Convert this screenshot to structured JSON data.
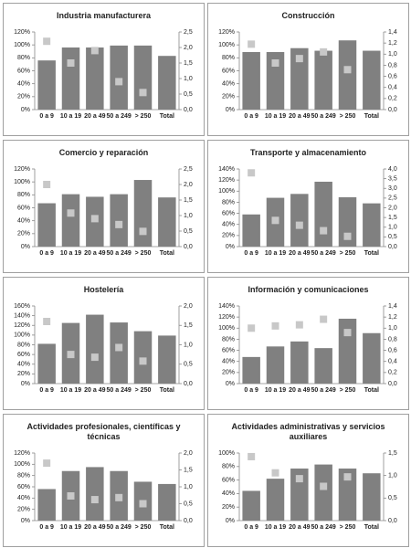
{
  "chart_data": [
    {
      "type": "bar",
      "title": "Industria manufacturera",
      "categories": [
        "0 a 9",
        "10 a 19",
        "20 a 49",
        "50 a 249",
        "> 250",
        "Total"
      ],
      "series": [
        {
          "type": "bar",
          "color": "#808080",
          "values": [
            76,
            96,
            96,
            99,
            99,
            83
          ]
        },
        {
          "type": "scatter",
          "axis": "y2",
          "color": "#c8c8c8",
          "values": [
            2.2,
            1.5,
            1.9,
            0.9,
            0.55,
            null
          ]
        }
      ],
      "ylim": [
        0,
        120
      ],
      "yticks": [
        {
          "value": 0,
          "label": "0%"
        },
        {
          "value": 20,
          "label": "20%"
        },
        {
          "value": 40,
          "label": "40%"
        },
        {
          "value": 60,
          "label": "60%"
        },
        {
          "value": 80,
          "label": "80%"
        },
        {
          "value": 100,
          "label": "100%"
        },
        {
          "value": 120,
          "label": "120%"
        }
      ],
      "y2lim": [
        0,
        2.5
      ],
      "y2ticks": [
        {
          "value": 0,
          "label": "0,0"
        },
        {
          "value": 0.5,
          "label": "0,5"
        },
        {
          "value": 1,
          "label": "1,0"
        },
        {
          "value": 1.5,
          "label": "1,5"
        },
        {
          "value": 2,
          "label": "2,0"
        },
        {
          "value": 2.5,
          "label": "2,5"
        }
      ]
    },
    {
      "type": "bar",
      "title": "Construcción",
      "categories": [
        "0 a 9",
        "10 a 19",
        "20 a 49",
        "50 a 249",
        "> 250",
        "Total"
      ],
      "series": [
        {
          "type": "bar",
          "color": "#808080",
          "values": [
            89,
            89,
            95,
            91,
            107,
            91
          ]
        },
        {
          "type": "scatter",
          "axis": "y2",
          "color": "#c8c8c8",
          "values": [
            1.18,
            0.84,
            0.92,
            1.04,
            0.72,
            null
          ]
        }
      ],
      "ylim": [
        0,
        120
      ],
      "yticks": [
        {
          "value": 0,
          "label": "0%"
        },
        {
          "value": 20,
          "label": "20%"
        },
        {
          "value": 40,
          "label": "40%"
        },
        {
          "value": 60,
          "label": "60%"
        },
        {
          "value": 80,
          "label": "80%"
        },
        {
          "value": 100,
          "label": "100%"
        },
        {
          "value": 120,
          "label": "120%"
        }
      ],
      "y2lim": [
        0,
        1.4
      ],
      "y2ticks": [
        {
          "value": 0,
          "label": "0,0"
        },
        {
          "value": 0.2,
          "label": "0,2"
        },
        {
          "value": 0.4,
          "label": "0,4"
        },
        {
          "value": 0.6,
          "label": "0,6"
        },
        {
          "value": 0.8,
          "label": "0,8"
        },
        {
          "value": 1,
          "label": "1,0"
        },
        {
          "value": 1.2,
          "label": "1,2"
        },
        {
          "value": 1.4,
          "label": "1,4"
        }
      ]
    },
    {
      "type": "bar",
      "title": "Comercio y reparación",
      "categories": [
        "0 a 9",
        "10 a 19",
        "20 a 49",
        "50 a 249",
        "> 250",
        "Total"
      ],
      "series": [
        {
          "type": "bar",
          "color": "#808080",
          "values": [
            67,
            81,
            77,
            81,
            103,
            76
          ]
        },
        {
          "type": "scatter",
          "axis": "y2",
          "color": "#c8c8c8",
          "values": [
            2.0,
            1.08,
            0.9,
            0.71,
            0.49,
            null
          ]
        }
      ],
      "ylim": [
        0,
        120
      ],
      "yticks": [
        {
          "value": 0,
          "label": "0%"
        },
        {
          "value": 20,
          "label": "20%"
        },
        {
          "value": 40,
          "label": "40%"
        },
        {
          "value": 60,
          "label": "60%"
        },
        {
          "value": 80,
          "label": "80%"
        },
        {
          "value": 100,
          "label": "100%"
        },
        {
          "value": 120,
          "label": "120%"
        }
      ],
      "y2lim": [
        0,
        2.5
      ],
      "y2ticks": [
        {
          "value": 0,
          "label": "0,0"
        },
        {
          "value": 0.5,
          "label": "0,5"
        },
        {
          "value": 1,
          "label": "1,0"
        },
        {
          "value": 1.5,
          "label": "1,5"
        },
        {
          "value": 2,
          "label": "2,0"
        },
        {
          "value": 2.5,
          "label": "2,5"
        }
      ]
    },
    {
      "type": "bar",
      "title": "Transporte y almacenamiento",
      "categories": [
        "0 a 9",
        "10 a 19",
        "20 a 49",
        "50 a 249",
        "> 250",
        "Total"
      ],
      "series": [
        {
          "type": "bar",
          "color": "#808080",
          "values": [
            58,
            88,
            95,
            117,
            89,
            78
          ]
        },
        {
          "type": "scatter",
          "axis": "y2",
          "color": "#c8c8c8",
          "values": [
            3.8,
            1.35,
            1.1,
            0.82,
            0.53,
            null
          ]
        }
      ],
      "ylim": [
        0,
        140
      ],
      "yticks": [
        {
          "value": 0,
          "label": "0%"
        },
        {
          "value": 20,
          "label": "20%"
        },
        {
          "value": 40,
          "label": "40%"
        },
        {
          "value": 60,
          "label": "60%"
        },
        {
          "value": 80,
          "label": "80%"
        },
        {
          "value": 100,
          "label": "100%"
        },
        {
          "value": 120,
          "label": "120%"
        },
        {
          "value": 140,
          "label": "140%"
        }
      ],
      "y2lim": [
        0,
        4
      ],
      "y2ticks": [
        {
          "value": 0,
          "label": "0,0"
        },
        {
          "value": 0.5,
          "label": "0,5"
        },
        {
          "value": 1,
          "label": "1,0"
        },
        {
          "value": 1.5,
          "label": "1,5"
        },
        {
          "value": 2,
          "label": "2,0"
        },
        {
          "value": 2.5,
          "label": "2,5"
        },
        {
          "value": 3,
          "label": "3,0"
        },
        {
          "value": 3.5,
          "label": "3,5"
        },
        {
          "value": 4,
          "label": "4,0"
        }
      ]
    },
    {
      "type": "bar",
      "title": "Hostelería",
      "categories": [
        "0 a 9",
        "10 a 19",
        "20 a 49",
        "50 a 249",
        "> 250",
        "Total"
      ],
      "series": [
        {
          "type": "bar",
          "color": "#808080",
          "values": [
            82,
            125,
            142,
            126,
            108,
            99
          ]
        },
        {
          "type": "scatter",
          "axis": "y2",
          "color": "#c8c8c8",
          "values": [
            1.6,
            0.75,
            0.68,
            0.93,
            0.58,
            null
          ]
        }
      ],
      "ylim": [
        0,
        160
      ],
      "yticks": [
        {
          "value": 0,
          "label": "0%"
        },
        {
          "value": 20,
          "label": "20%"
        },
        {
          "value": 40,
          "label": "40%"
        },
        {
          "value": 60,
          "label": "60%"
        },
        {
          "value": 80,
          "label": "80%"
        },
        {
          "value": 100,
          "label": "100%"
        },
        {
          "value": 120,
          "label": "120%"
        },
        {
          "value": 140,
          "label": "140%"
        },
        {
          "value": 160,
          "label": "160%"
        }
      ],
      "y2lim": [
        0,
        2
      ],
      "y2ticks": [
        {
          "value": 0,
          "label": "0,0"
        },
        {
          "value": 0.5,
          "label": "0,5"
        },
        {
          "value": 1,
          "label": "1,0"
        },
        {
          "value": 1.5,
          "label": "1,5"
        },
        {
          "value": 2,
          "label": "2,0"
        }
      ]
    },
    {
      "type": "bar",
      "title": "Información y comunicaciones",
      "categories": [
        "0 a 9",
        "10 a 19",
        "20 a 49",
        "50 a 249",
        "> 250",
        "Total"
      ],
      "series": [
        {
          "type": "bar",
          "color": "#808080",
          "values": [
            48,
            67,
            76,
            64,
            117,
            91
          ]
        },
        {
          "type": "scatter",
          "axis": "y2",
          "color": "#c8c8c8",
          "values": [
            1.0,
            1.04,
            1.06,
            1.16,
            0.92,
            null
          ]
        }
      ],
      "ylim": [
        0,
        140
      ],
      "yticks": [
        {
          "value": 0,
          "label": "0%"
        },
        {
          "value": 20,
          "label": "20%"
        },
        {
          "value": 40,
          "label": "40%"
        },
        {
          "value": 60,
          "label": "60%"
        },
        {
          "value": 80,
          "label": "80%"
        },
        {
          "value": 100,
          "label": "100%"
        },
        {
          "value": 120,
          "label": "120%"
        },
        {
          "value": 140,
          "label": "140%"
        }
      ],
      "y2lim": [
        0,
        1.4
      ],
      "y2ticks": [
        {
          "value": 0,
          "label": "0,0"
        },
        {
          "value": 0.2,
          "label": "0,2"
        },
        {
          "value": 0.4,
          "label": "0,4"
        },
        {
          "value": 0.6,
          "label": "0,6"
        },
        {
          "value": 0.8,
          "label": "0,8"
        },
        {
          "value": 1,
          "label": "1,0"
        },
        {
          "value": 1.2,
          "label": "1,2"
        },
        {
          "value": 1.4,
          "label": "1,4"
        }
      ]
    },
    {
      "type": "bar",
      "title": "Actividades profesionales, científicas y técnicas",
      "categories": [
        "0 a 9",
        "10 a 19",
        "20 a 49",
        "50 a 249",
        "> 250",
        "Total"
      ],
      "series": [
        {
          "type": "bar",
          "color": "#808080",
          "values": [
            56,
            88,
            95,
            88,
            69,
            65
          ]
        },
        {
          "type": "scatter",
          "axis": "y2",
          "color": "#c8c8c8",
          "values": [
            1.7,
            0.73,
            0.62,
            0.68,
            0.5,
            null
          ]
        }
      ],
      "ylim": [
        0,
        120
      ],
      "yticks": [
        {
          "value": 0,
          "label": "0%"
        },
        {
          "value": 20,
          "label": "20%"
        },
        {
          "value": 40,
          "label": "40%"
        },
        {
          "value": 60,
          "label": "60%"
        },
        {
          "value": 80,
          "label": "80%"
        },
        {
          "value": 100,
          "label": "100%"
        },
        {
          "value": 120,
          "label": "120%"
        }
      ],
      "y2lim": [
        0,
        2
      ],
      "y2ticks": [
        {
          "value": 0,
          "label": "0,0"
        },
        {
          "value": 0.5,
          "label": "0,5"
        },
        {
          "value": 1,
          "label": "1,0"
        },
        {
          "value": 1.5,
          "label": "1,5"
        },
        {
          "value": 2,
          "label": "2,0"
        }
      ]
    },
    {
      "type": "bar",
      "title": "Actividades administrativas y servicios auxiliares",
      "categories": [
        "0 a 9",
        "10 a 19",
        "20 a 49",
        "50 a 249",
        "> 250",
        "Total"
      ],
      "series": [
        {
          "type": "bar",
          "color": "#808080",
          "values": [
            44,
            62,
            77,
            83,
            77,
            70
          ]
        },
        {
          "type": "scatter",
          "axis": "y2",
          "color": "#c8c8c8",
          "values": [
            1.42,
            1.06,
            0.93,
            0.76,
            0.97,
            null
          ]
        }
      ],
      "ylim": [
        0,
        100
      ],
      "yticks": [
        {
          "value": 0,
          "label": "0%"
        },
        {
          "value": 20,
          "label": "20%"
        },
        {
          "value": 40,
          "label": "40%"
        },
        {
          "value": 60,
          "label": "60%"
        },
        {
          "value": 80,
          "label": "80%"
        },
        {
          "value": 100,
          "label": "100%"
        }
      ],
      "y2lim": [
        0,
        1.5
      ],
      "y2ticks": [
        {
          "value": 0,
          "label": "0,0"
        },
        {
          "value": 0.5,
          "label": "0,5"
        },
        {
          "value": 1,
          "label": "1,0"
        },
        {
          "value": 1.5,
          "label": "1,5"
        }
      ]
    }
  ]
}
